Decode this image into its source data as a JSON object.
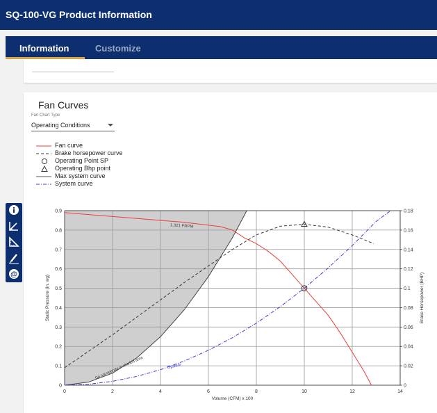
{
  "app": {
    "title": "SQ-100-VG Product Information"
  },
  "tabs": [
    {
      "label": "Information",
      "active": true
    },
    {
      "label": "Customize",
      "active": false
    }
  ],
  "section": {
    "title": "Fan Curves",
    "select_label": "Fan Chart Type",
    "select_value": "Operating Conditions"
  },
  "legend": [
    {
      "label": "Fan curve",
      "marker": "solid-line",
      "color": "#e8403a"
    },
    {
      "label": "Brake horsepower curve",
      "marker": "dashed-line",
      "color": "#333333"
    },
    {
      "label": "Operating Point SP",
      "marker": "circle",
      "color": "#333333"
    },
    {
      "label": "Operating Bhp point",
      "marker": "triangle",
      "color": "#333333"
    },
    {
      "label": "Max system curve",
      "marker": "solid-line",
      "color": "#555555"
    },
    {
      "label": "System curve",
      "marker": "dash-dot-line",
      "color": "#3b3bd6"
    }
  ],
  "toolbar": {
    "tools": [
      "info-icon",
      "angle-icon",
      "ruler-triangle-icon",
      "pen-icon",
      "at-icon"
    ]
  },
  "chart_data": {
    "type": "line",
    "xlabel": "Volume (CFM) x 100",
    "ylabel": "Static Pressure (in. wg)",
    "y2label": "Brake Horsepower (BHP)",
    "xlim": [
      0,
      14
    ],
    "ylim": [
      0,
      0.9
    ],
    "y2lim": [
      0,
      0.18
    ],
    "xticks": [
      "0",
      "2",
      "4",
      "6",
      "8",
      "10",
      "12",
      "14"
    ],
    "yticks": [
      "0",
      "0.1",
      "0.2",
      "0.3",
      "0.4",
      "0.5",
      "0.6",
      "0.7",
      "0.8",
      "0.9"
    ],
    "y2ticks": [
      "0",
      "0.02",
      "0.04",
      "0.06",
      "0.08",
      "0.1",
      "0.12",
      "0.14",
      "0.16",
      "0.18"
    ],
    "grid": true,
    "annotations": {
      "rpm": "1,321 FRPM",
      "shaded": "Do not operate in shaded area",
      "system": "System"
    },
    "series": [
      {
        "name": "Fan curve",
        "axis": "left",
        "x": [
          0,
          1,
          2,
          3,
          4,
          5,
          6,
          6.5,
          7,
          7.5,
          8,
          8.5,
          9,
          9.5,
          10,
          10.5,
          11,
          11.5,
          12,
          12.5,
          12.8
        ],
        "y": [
          0.89,
          0.88,
          0.87,
          0.86,
          0.85,
          0.84,
          0.825,
          0.818,
          0.8,
          0.76,
          0.73,
          0.69,
          0.64,
          0.57,
          0.5,
          0.43,
          0.36,
          0.27,
          0.17,
          0.07,
          0.0
        ]
      },
      {
        "name": "Brake horsepower curve",
        "axis": "right",
        "x": [
          0,
          1,
          2,
          3,
          4,
          5,
          6,
          7,
          8,
          9,
          10,
          11,
          12,
          12.9
        ],
        "y": [
          0.018,
          0.035,
          0.052,
          0.07,
          0.088,
          0.106,
          0.123,
          0.14,
          0.155,
          0.164,
          0.166,
          0.163,
          0.155,
          0.146
        ]
      },
      {
        "name": "Max system curve",
        "axis": "left",
        "x": [
          0,
          1,
          2,
          3,
          4,
          5,
          6,
          7,
          7.6
        ],
        "y": [
          0.0,
          0.016,
          0.062,
          0.14,
          0.25,
          0.39,
          0.56,
          0.76,
          0.9
        ]
      },
      {
        "name": "System curve",
        "axis": "left",
        "x": [
          0,
          1,
          2,
          3,
          4,
          5,
          6,
          7,
          8,
          9,
          10,
          11,
          12,
          13,
          13.6
        ],
        "y": [
          0.0,
          0.005,
          0.02,
          0.045,
          0.08,
          0.125,
          0.18,
          0.245,
          0.32,
          0.405,
          0.5,
          0.605,
          0.72,
          0.845,
          0.9
        ]
      }
    ],
    "operating_point_sp": {
      "x": 10,
      "y": 0.5
    },
    "operating_point_bhp": {
      "x": 10,
      "y": 0.166
    }
  }
}
